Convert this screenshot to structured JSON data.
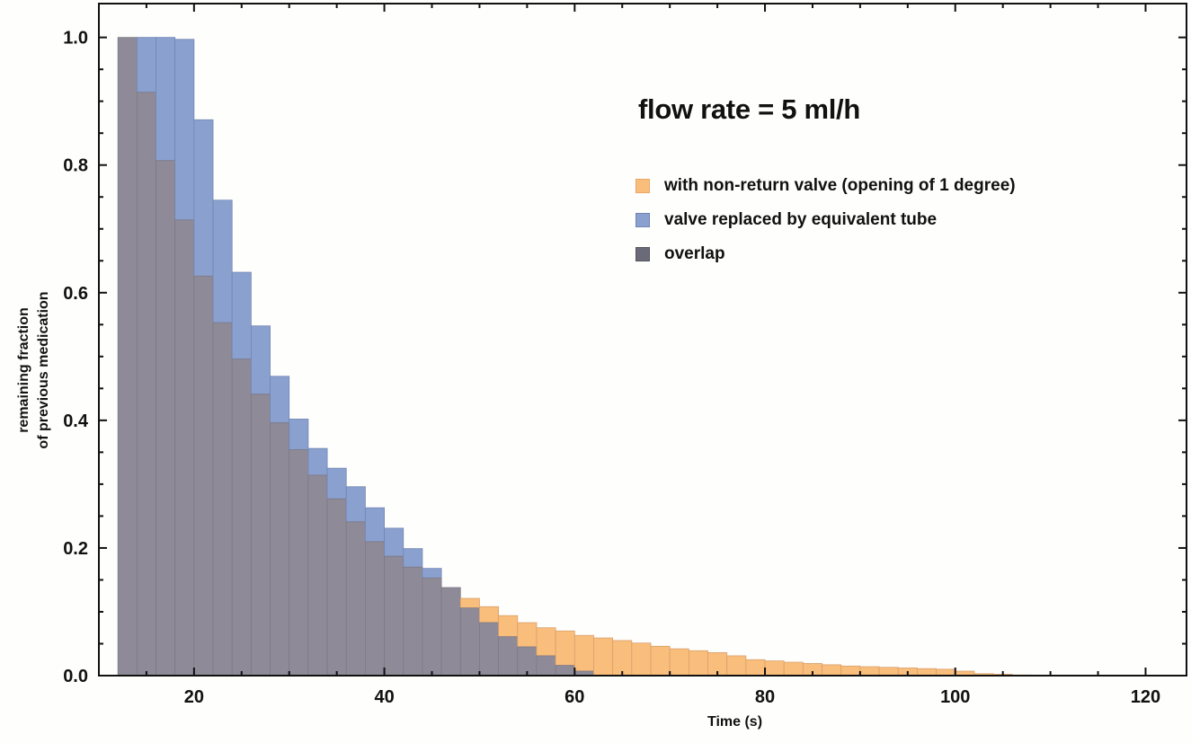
{
  "chart_data": {
    "type": "bar",
    "subtype": "overlapping-histogram",
    "title": "flow rate = 5 ml/h",
    "xlabel": "Time (s)",
    "ylabel": [
      "remaining fraction",
      "of previous medication"
    ],
    "xlim": [
      10,
      124.3
    ],
    "ylim": [
      0,
      1.053
    ],
    "x_ticks": [
      20,
      40,
      60,
      80,
      100,
      120
    ],
    "y_ticks": [
      "0.0",
      "0.2",
      "0.4",
      "0.6",
      "0.8",
      "1.0"
    ],
    "y_tick_values": [
      0.0,
      0.2,
      0.4,
      0.6,
      0.8,
      1.0
    ],
    "grid": false,
    "legend_position": "upper-right-inside",
    "bin_width": 2,
    "bin_starts": [
      12,
      14,
      16,
      18,
      20,
      22,
      24,
      26,
      28,
      30,
      32,
      34,
      36,
      38,
      40,
      42,
      44,
      46,
      48,
      50,
      52,
      54,
      56,
      58,
      60,
      62,
      64,
      66,
      68,
      70,
      72,
      74,
      76,
      78,
      80,
      82,
      84,
      86,
      88,
      90,
      92,
      94,
      96,
      98,
      100,
      102,
      104,
      106,
      108
    ],
    "series": [
      {
        "name": "with non-return valve (opening of 1 degree)",
        "color": "#f9bd7c",
        "values": [
          1.0,
          0.914,
          0.807,
          0.714,
          0.626,
          0.553,
          0.496,
          0.441,
          0.396,
          0.354,
          0.314,
          0.277,
          0.241,
          0.21,
          0.187,
          0.17,
          0.153,
          0.138,
          0.121,
          0.108,
          0.094,
          0.083,
          0.075,
          0.07,
          0.063,
          0.059,
          0.055,
          0.051,
          0.046,
          0.042,
          0.039,
          0.036,
          0.031,
          0.025,
          0.023,
          0.021,
          0.019,
          0.017,
          0.015,
          0.014,
          0.013,
          0.012,
          0.011,
          0.01,
          0.007,
          0.003,
          0.002,
          0.001,
          0.0005
        ]
      },
      {
        "name": "valve replaced by equivalent tube",
        "color": "#8aa1cf",
        "values": [
          1.0,
          1.0,
          1.0,
          0.997,
          0.871,
          0.745,
          0.632,
          0.548,
          0.469,
          0.402,
          0.356,
          0.325,
          0.296,
          0.263,
          0.231,
          0.199,
          0.168,
          0.138,
          0.106,
          0.083,
          0.061,
          0.045,
          0.031,
          0.016,
          0.007,
          0,
          0,
          0,
          0,
          0,
          0,
          0,
          0,
          0,
          0,
          0,
          0,
          0,
          0,
          0,
          0,
          0,
          0,
          0,
          0,
          0,
          0,
          0,
          0
        ]
      }
    ],
    "overlap": {
      "name": "overlap",
      "color": "#8e8a97",
      "legend_color": "#6b6a78"
    }
  },
  "legend": {
    "items": [
      {
        "label": "with non-return valve (opening of 1 degree)",
        "color": "#f9bd7c",
        "border": "#e8a766"
      },
      {
        "label": "valve replaced by equivalent tube",
        "color": "#8aa1cf",
        "border": "#6f84b3"
      },
      {
        "label": "overlap",
        "color": "#6b6a78",
        "border": "#55545f"
      }
    ]
  },
  "colors": {
    "background": "#fefefc",
    "axis": "#111111",
    "bar_edge": "#7d7a86"
  }
}
